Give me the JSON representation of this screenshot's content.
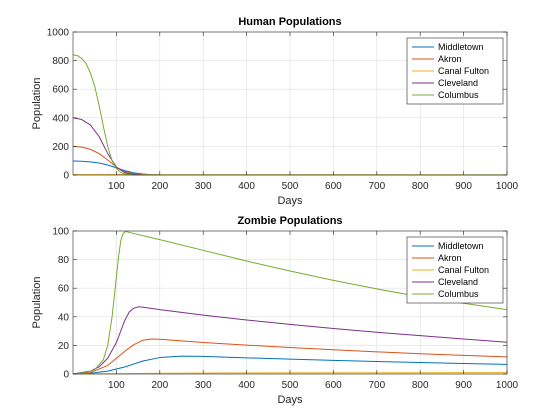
{
  "chart_data": [
    {
      "type": "line",
      "title": "Human Populations",
      "xlabel": "Days",
      "ylabel": "Population",
      "xlim": [
        0,
        1000
      ],
      "ylim": [
        0,
        1000
      ],
      "xticks": [
        100,
        200,
        300,
        400,
        500,
        600,
        700,
        800,
        900,
        1000
      ],
      "yticks": [
        0,
        200,
        400,
        600,
        800,
        1000
      ],
      "grid": true,
      "legend_position": "top-right",
      "series": [
        {
          "name": "Middletown",
          "color": "#0072BD",
          "x": [
            0,
            20,
            40,
            60,
            80,
            100,
            120,
            140,
            160,
            180,
            200,
            250,
            1000
          ],
          "y": [
            98,
            96,
            92,
            84,
            70,
            50,
            30,
            15,
            7,
            3,
            1,
            0,
            0
          ]
        },
        {
          "name": "Akron",
          "color": "#D95319",
          "x": [
            0,
            20,
            40,
            60,
            80,
            100,
            120,
            140,
            160,
            180,
            200,
            1000
          ],
          "y": [
            200,
            195,
            180,
            150,
            105,
            55,
            22,
            8,
            3,
            1,
            0,
            0
          ]
        },
        {
          "name": "Canal Fulton",
          "color": "#EDB120",
          "x": [
            0,
            200,
            1000
          ],
          "y": [
            3,
            2,
            1
          ]
        },
        {
          "name": "Cleveland",
          "color": "#7E2F8E",
          "x": [
            0,
            20,
            40,
            60,
            80,
            100,
            120,
            140,
            160,
            180,
            200,
            1000
          ],
          "y": [
            400,
            388,
            350,
            270,
            150,
            55,
            15,
            4,
            1,
            0,
            0,
            0
          ]
        },
        {
          "name": "Columbus",
          "color": "#77AC30",
          "x": [
            0,
            10,
            20,
            30,
            40,
            50,
            60,
            70,
            80,
            90,
            100,
            110,
            120,
            140,
            160,
            180,
            200,
            1000
          ],
          "y": [
            840,
            835,
            815,
            780,
            715,
            620,
            490,
            340,
            200,
            100,
            45,
            18,
            6,
            1,
            0,
            0,
            0,
            0
          ]
        }
      ]
    },
    {
      "type": "line",
      "title": "Zombie Populations",
      "xlabel": "Days",
      "ylabel": "Population",
      "xlim": [
        0,
        1000
      ],
      "ylim": [
        0,
        100
      ],
      "xticks": [
        100,
        200,
        300,
        400,
        500,
        600,
        700,
        800,
        900,
        1000
      ],
      "yticks": [
        0,
        20,
        40,
        60,
        80,
        100
      ],
      "grid": true,
      "legend_position": "top-right",
      "series": [
        {
          "name": "Middletown",
          "color": "#0072BD",
          "x": [
            0,
            40,
            80,
            120,
            160,
            200,
            250,
            300,
            400,
            500,
            600,
            700,
            800,
            900,
            1000
          ],
          "y": [
            0,
            0.5,
            2,
            5,
            9,
            11.5,
            12.5,
            12.3,
            11.3,
            10.4,
            9.5,
            8.7,
            8,
            7.3,
            6.7
          ]
        },
        {
          "name": "Akron",
          "color": "#D95319",
          "x": [
            0,
            40,
            80,
            100,
            120,
            140,
            160,
            180,
            200,
            300,
            400,
            500,
            600,
            700,
            800,
            900,
            1000
          ],
          "y": [
            0,
            1,
            6,
            11,
            16,
            20.5,
            23.5,
            24.5,
            24.3,
            22,
            20.2,
            18.5,
            17,
            15.5,
            14.2,
            13,
            12
          ]
        },
        {
          "name": "Canal Fulton",
          "color": "#EDB120",
          "x": [
            0,
            100,
            200,
            400,
            1000
          ],
          "y": [
            0,
            0.2,
            0.5,
            0.8,
            1
          ]
        },
        {
          "name": "Cleveland",
          "color": "#7E2F8E",
          "x": [
            0,
            40,
            60,
            80,
            100,
            110,
            120,
            130,
            140,
            150,
            160,
            200,
            300,
            400,
            500,
            600,
            700,
            800,
            900,
            1000
          ],
          "y": [
            0,
            2,
            5,
            11,
            22,
            30,
            38,
            43.5,
            46,
            47,
            46.8,
            45,
            41.2,
            37.8,
            34.7,
            31.8,
            29.2,
            26.8,
            24.5,
            22.2
          ]
        },
        {
          "name": "Columbus",
          "color": "#77AC30",
          "x": [
            0,
            30,
            50,
            70,
            80,
            90,
            100,
            105,
            110,
            115,
            120,
            125,
            130,
            200,
            300,
            400,
            500,
            600,
            700,
            800,
            900,
            1000
          ],
          "y": [
            0,
            1,
            3,
            10,
            20,
            40,
            68,
            82,
            93,
            98,
            99.5,
            99.5,
            99,
            94,
            86.5,
            79,
            72,
            65.5,
            59.5,
            54,
            49.5,
            45
          ]
        }
      ]
    }
  ]
}
